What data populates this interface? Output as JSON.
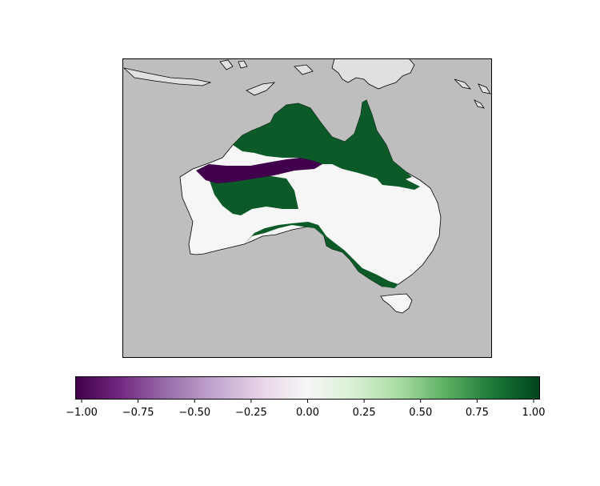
{
  "map": {
    "ocean_color": "#bebebe",
    "foreign_land_color": "#e0e0e0",
    "neutral_land_color": "#f6f6f6",
    "positive_color": "#0b5a27",
    "negative_color": "#40004b",
    "coastline_color": "#000000"
  },
  "colorbar": {
    "min": -1.0,
    "max": 1.0,
    "colormap": "PRGn",
    "stops": [
      "#40004b",
      "#762a83",
      "#9970ab",
      "#c2a5cf",
      "#e7d4e8",
      "#f7f7f7",
      "#d9f0d3",
      "#a6dba0",
      "#5aae61",
      "#1b7837",
      "#00441b"
    ],
    "ticks": [
      "−1.00",
      "−0.75",
      "−0.50",
      "−0.25",
      "0.00",
      "0.25",
      "0.50",
      "0.75",
      "1.00"
    ]
  }
}
